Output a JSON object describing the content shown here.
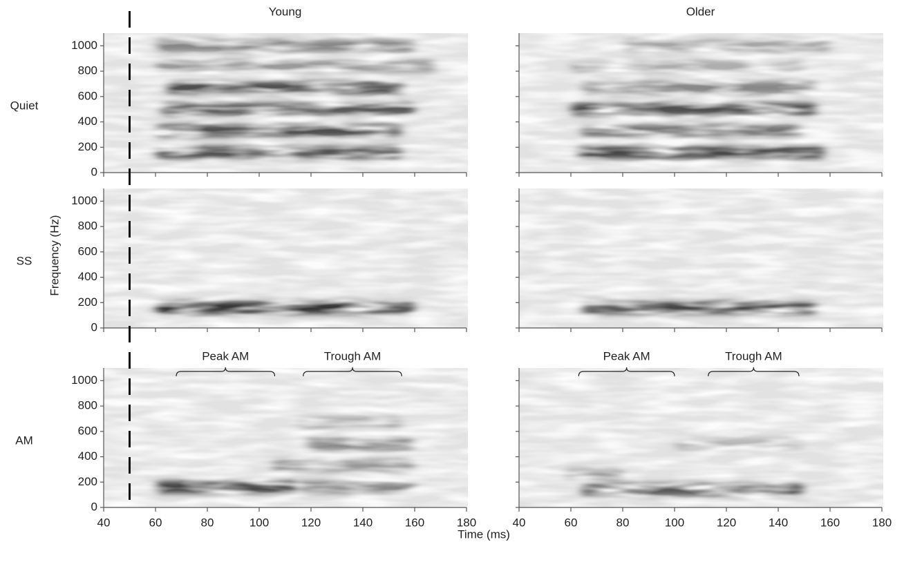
{
  "chart_data": {
    "type": "spectrogram",
    "columns": [
      "Young",
      "Older"
    ],
    "rows": [
      "Quiet",
      "SS",
      "AM"
    ],
    "x_label": "Time (ms)",
    "y_label": "Frequency (Hz)",
    "xlim": [
      40,
      180
    ],
    "xticks": [
      40,
      60,
      80,
      100,
      120,
      140,
      160,
      180
    ],
    "ylim": [
      0,
      1100
    ],
    "yticks": [
      0,
      200,
      400,
      600,
      800,
      1000
    ],
    "onset": 50,
    "panels": [
      {
        "bands": [
          {
            "frequency": 1000,
            "start": 60,
            "end": 160,
            "intensity": 0.5
          },
          {
            "frequency": 840,
            "start": 60,
            "end": 168,
            "intensity": 0.4
          },
          {
            "frequency": 670,
            "start": 64,
            "end": 156,
            "intensity": 0.8
          },
          {
            "frequency": 500,
            "start": 62,
            "end": 160,
            "intensity": 0.75
          },
          {
            "frequency": 330,
            "start": 60,
            "end": 155,
            "intensity": 0.8
          },
          {
            "frequency": 160,
            "start": 60,
            "end": 155,
            "intensity": 0.8
          }
        ]
      },
      {
        "bands": [
          {
            "frequency": 1000,
            "start": 80,
            "end": 160,
            "intensity": 0.35
          },
          {
            "frequency": 840,
            "start": 60,
            "end": 150,
            "intensity": 0.3
          },
          {
            "frequency": 670,
            "start": 64,
            "end": 155,
            "intensity": 0.5
          },
          {
            "frequency": 500,
            "start": 60,
            "end": 155,
            "intensity": 0.8
          },
          {
            "frequency": 330,
            "start": 64,
            "end": 150,
            "intensity": 0.6
          },
          {
            "frequency": 160,
            "start": 62,
            "end": 158,
            "intensity": 0.85
          }
        ]
      },
      {
        "bands": [
          {
            "frequency": 160,
            "start": 60,
            "end": 160,
            "intensity": 0.95
          }
        ]
      },
      {
        "bands": [
          {
            "frequency": 160,
            "start": 64,
            "end": 155,
            "intensity": 0.85
          }
        ]
      },
      {
        "bands": [
          {
            "frequency": 160,
            "start": 60,
            "end": 115,
            "intensity": 0.85
          },
          {
            "frequency": 160,
            "start": 115,
            "end": 160,
            "intensity": 0.5
          },
          {
            "frequency": 330,
            "start": 105,
            "end": 160,
            "intensity": 0.4
          },
          {
            "frequency": 500,
            "start": 118,
            "end": 160,
            "intensity": 0.5
          },
          {
            "frequency": 670,
            "start": 115,
            "end": 155,
            "intensity": 0.3
          }
        ],
        "annotations": [
          {
            "label": "Peak AM",
            "start": 68,
            "end": 106
          },
          {
            "label": "Trough AM",
            "start": 117,
            "end": 155
          }
        ]
      },
      {
        "bands": [
          {
            "frequency": 140,
            "start": 64,
            "end": 150,
            "intensity": 0.75
          },
          {
            "frequency": 260,
            "start": 58,
            "end": 80,
            "intensity": 0.4
          },
          {
            "frequency": 500,
            "start": 100,
            "end": 150,
            "intensity": 0.25
          }
        ],
        "annotations": [
          {
            "label": "Peak AM",
            "start": 63,
            "end": 100
          },
          {
            "label": "Trough AM",
            "start": 113,
            "end": 148
          }
        ]
      }
    ]
  }
}
